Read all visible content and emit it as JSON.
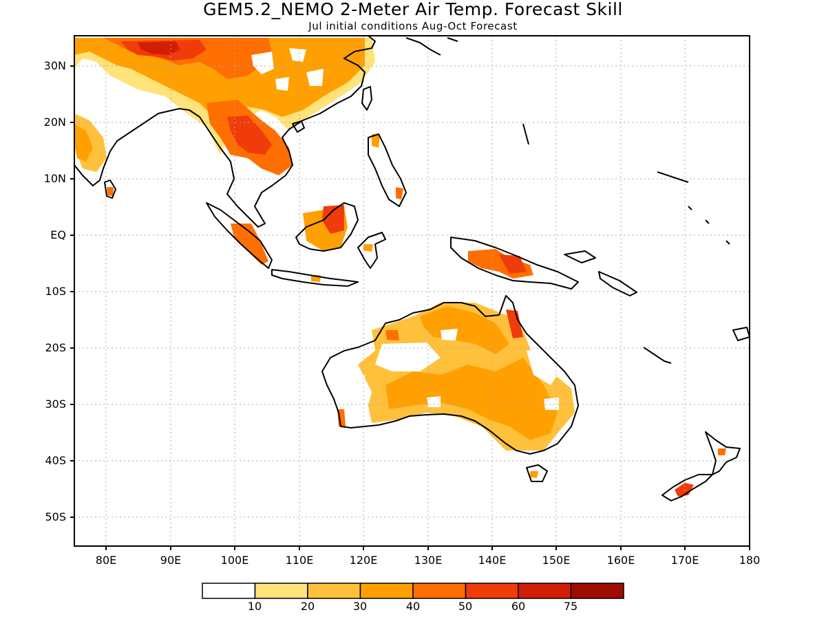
{
  "title": "GEM5.2_NEMO 2-Meter Air Temp. Forecast Skill",
  "subtitle": "Jul initial conditions  Aug-Oct Forecast",
  "lat_labels": [
    "30N",
    "20N",
    "10N",
    "EQ",
    "10S",
    "20S",
    "30S",
    "40S",
    "50S"
  ],
  "lon_labels": [
    "80E",
    "90E",
    "100E",
    "110E",
    "120E",
    "130E",
    "140E",
    "150E",
    "160E",
    "170E",
    "180"
  ],
  "colorbar": {
    "colors": [
      "#ffffff",
      "#ffe27a",
      "#ffc13c",
      "#ffa000",
      "#ff6e00",
      "#f03c0a",
      "#d21e06",
      "#a00c00"
    ],
    "labels": [
      "10",
      "20",
      "30",
      "40",
      "50",
      "60",
      "75"
    ]
  },
  "map": {
    "projection": "lat-lon",
    "lon_range": [
      75,
      180
    ],
    "lat_range": [
      -55,
      35
    ],
    "gridlines": "dotted"
  }
}
